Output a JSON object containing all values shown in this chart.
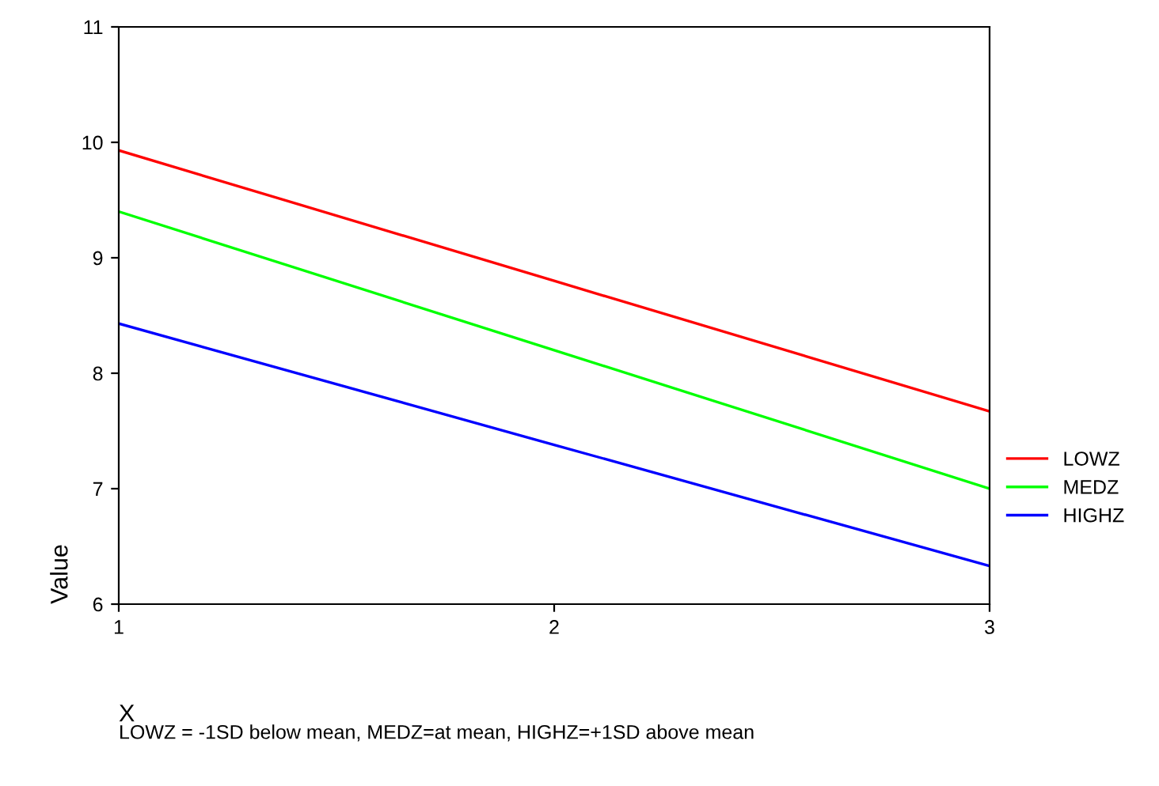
{
  "chart_data": {
    "type": "line",
    "x": [
      1,
      2,
      3
    ],
    "series": [
      {
        "name": "LOWZ",
        "color": "#ff0000",
        "values": [
          9.93,
          8.8,
          7.67
        ]
      },
      {
        "name": "MEDZ",
        "color": "#00ff00",
        "values": [
          9.4,
          8.2,
          7.0
        ]
      },
      {
        "name": "HIGHZ",
        "color": "#0000ff",
        "values": [
          8.43,
          7.38,
          6.33
        ]
      }
    ],
    "xlabel": "X",
    "ylabel": "Value",
    "xlim": [
      1,
      3
    ],
    "xticks": [
      1,
      2,
      3
    ],
    "ylim": [
      6,
      11
    ],
    "yticks": [
      6,
      7,
      8,
      9,
      10,
      11
    ],
    "grid": false,
    "legend": "right",
    "marker": "none",
    "line_style": "solid",
    "annotations": [
      "LOWZ = -1SD below mean, MEDZ=at mean, HIGHZ=+1SD above mean"
    ]
  }
}
